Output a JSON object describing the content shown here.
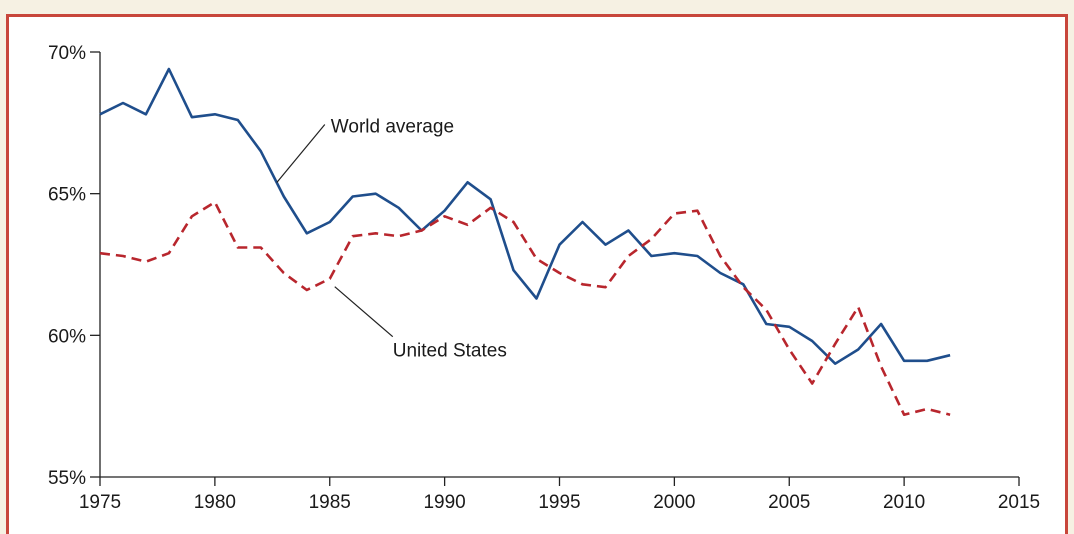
{
  "chart_data": {
    "type": "line",
    "title": "",
    "xlabel": "",
    "ylabel": "",
    "xlim": [
      1975,
      2015
    ],
    "ylim": [
      55,
      70
    ],
    "x_ticks": [
      1975,
      1980,
      1985,
      1990,
      1995,
      2000,
      2005,
      2010,
      2015
    ],
    "y_ticks": [
      55,
      60,
      65,
      70
    ],
    "y_tick_labels": [
      "55%",
      "60%",
      "65%",
      "70%"
    ],
    "grid": false,
    "colors": {
      "world": "#1f4e8c",
      "us": "#b8262d",
      "frame": "#c8463b"
    },
    "series": [
      {
        "name": "World average",
        "style": "solid",
        "x": [
          1975,
          1976,
          1977,
          1978,
          1979,
          1980,
          1981,
          1982,
          1983,
          1984,
          1985,
          1986,
          1987,
          1988,
          1989,
          1990,
          1991,
          1992,
          1993,
          1994,
          1995,
          1996,
          1997,
          1998,
          1999,
          2000,
          2001,
          2002,
          2003,
          2004,
          2005,
          2006,
          2007,
          2008,
          2009,
          2010,
          2011,
          2012
        ],
        "values": [
          67.8,
          68.2,
          67.8,
          69.4,
          67.7,
          67.8,
          67.6,
          66.5,
          64.9,
          63.6,
          64.0,
          64.9,
          65.0,
          64.5,
          63.7,
          64.4,
          65.4,
          64.8,
          62.3,
          61.3,
          63.2,
          64.0,
          63.2,
          63.7,
          62.8,
          62.9,
          62.8,
          62.2,
          61.8,
          60.4,
          60.3,
          59.8,
          59.0,
          59.5,
          60.4,
          59.1,
          59.1,
          59.3
        ]
      },
      {
        "name": "United States",
        "style": "dashed",
        "x": [
          1975,
          1976,
          1977,
          1978,
          1979,
          1980,
          1981,
          1982,
          1983,
          1984,
          1985,
          1986,
          1987,
          1988,
          1989,
          1990,
          1991,
          1992,
          1993,
          1994,
          1995,
          1996,
          1997,
          1998,
          1999,
          2000,
          2001,
          2002,
          2003,
          2004,
          2005,
          2006,
          2007,
          2008,
          2009,
          2010,
          2011,
          2012
        ],
        "values": [
          62.9,
          62.8,
          62.6,
          62.9,
          64.2,
          64.7,
          63.1,
          63.1,
          62.2,
          61.6,
          62.0,
          63.5,
          63.6,
          63.5,
          63.7,
          64.2,
          63.9,
          64.5,
          64.0,
          62.7,
          62.2,
          61.8,
          61.7,
          62.8,
          63.4,
          64.3,
          64.4,
          62.8,
          61.7,
          60.9,
          59.5,
          58.3,
          59.7,
          61.0,
          58.9,
          57.2,
          57.4,
          57.2
        ]
      }
    ],
    "annotations": [
      {
        "text": "World average",
        "series": 0,
        "at_x": 1983
      },
      {
        "text": "United States",
        "series": 1,
        "at_x": 1985
      }
    ]
  }
}
